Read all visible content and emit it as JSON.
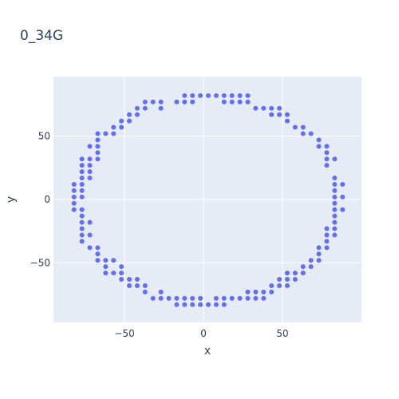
{
  "chart_data": {
    "type": "scatter",
    "title": "0_34G",
    "xlabel": "x",
    "ylabel": "y",
    "xlim": [
      -95,
      100
    ],
    "ylim": [
      -97,
      97
    ],
    "x_ticks": [
      -50,
      0,
      50
    ],
    "y_ticks": [
      -50,
      0,
      50
    ],
    "grid": true,
    "colors": {
      "marker": "#636efa",
      "plot_bg": "#e5ecf6",
      "grid": "#ffffff",
      "text": "#2a3f5f"
    },
    "series": [
      {
        "points": [
          [
            -82,
            12
          ],
          [
            -82,
            7
          ],
          [
            -82,
            2
          ],
          [
            -82,
            -3
          ],
          [
            -82,
            -8
          ],
          [
            -77,
            32
          ],
          [
            -77,
            27
          ],
          [
            -77,
            22
          ],
          [
            -77,
            17
          ],
          [
            -77,
            12
          ],
          [
            -77,
            7
          ],
          [
            -77,
            2
          ],
          [
            -77,
            -8
          ],
          [
            -77,
            -13
          ],
          [
            -77,
            -18
          ],
          [
            -77,
            -23
          ],
          [
            -77,
            -28
          ],
          [
            -77,
            -33
          ],
          [
            -72,
            42
          ],
          [
            -72,
            32
          ],
          [
            -72,
            27
          ],
          [
            -72,
            22
          ],
          [
            -72,
            17
          ],
          [
            -72,
            -18
          ],
          [
            -72,
            -28
          ],
          [
            -72,
            -38
          ],
          [
            -67,
            52
          ],
          [
            -67,
            47
          ],
          [
            -67,
            42
          ],
          [
            -67,
            37
          ],
          [
            -67,
            32
          ],
          [
            -67,
            -38
          ],
          [
            -67,
            -43
          ],
          [
            -67,
            -48
          ],
          [
            -62,
            52
          ],
          [
            -62,
            -48
          ],
          [
            -62,
            -53
          ],
          [
            -62,
            -58
          ],
          [
            -57,
            57
          ],
          [
            -57,
            52
          ],
          [
            -57,
            -48
          ],
          [
            -57,
            -58
          ],
          [
            -52,
            62
          ],
          [
            -52,
            57
          ],
          [
            -52,
            -53
          ],
          [
            -52,
            -58
          ],
          [
            -52,
            -63
          ],
          [
            -47,
            67
          ],
          [
            -47,
            62
          ],
          [
            -47,
            -63
          ],
          [
            -47,
            -68
          ],
          [
            -42,
            72
          ],
          [
            -42,
            67
          ],
          [
            -42,
            -63
          ],
          [
            -42,
            -68
          ],
          [
            -37,
            77
          ],
          [
            -37,
            72
          ],
          [
            -37,
            -68
          ],
          [
            -37,
            -73
          ],
          [
            -32,
            77
          ],
          [
            -32,
            -78
          ],
          [
            -27,
            77
          ],
          [
            -27,
            72
          ],
          [
            -27,
            -73
          ],
          [
            -27,
            -78
          ],
          [
            -22,
            -78
          ],
          [
            -17,
            77
          ],
          [
            -17,
            -78
          ],
          [
            -17,
            -83
          ],
          [
            -12,
            82
          ],
          [
            -12,
            77
          ],
          [
            -12,
            -78
          ],
          [
            -12,
            -83
          ],
          [
            -7,
            82
          ],
          [
            -7,
            77
          ],
          [
            -7,
            -78
          ],
          [
            -7,
            -83
          ],
          [
            -2,
            82
          ],
          [
            -2,
            -78
          ],
          [
            -2,
            -83
          ],
          [
            3,
            82
          ],
          [
            3,
            -83
          ],
          [
            8,
            82
          ],
          [
            8,
            -78
          ],
          [
            8,
            -83
          ],
          [
            13,
            82
          ],
          [
            13,
            77
          ],
          [
            13,
            -78
          ],
          [
            13,
            -83
          ],
          [
            18,
            82
          ],
          [
            18,
            77
          ],
          [
            18,
            -78
          ],
          [
            23,
            82
          ],
          [
            23,
            77
          ],
          [
            23,
            -78
          ],
          [
            28,
            82
          ],
          [
            28,
            77
          ],
          [
            28,
            -73
          ],
          [
            28,
            -78
          ],
          [
            33,
            72
          ],
          [
            33,
            -73
          ],
          [
            33,
            -78
          ],
          [
            38,
            72
          ],
          [
            38,
            -73
          ],
          [
            38,
            -78
          ],
          [
            43,
            72
          ],
          [
            43,
            67
          ],
          [
            43,
            -68
          ],
          [
            43,
            -73
          ],
          [
            48,
            72
          ],
          [
            48,
            67
          ],
          [
            48,
            -63
          ],
          [
            48,
            -68
          ],
          [
            53,
            67
          ],
          [
            53,
            62
          ],
          [
            53,
            -58
          ],
          [
            53,
            -63
          ],
          [
            53,
            -68
          ],
          [
            58,
            57
          ],
          [
            58,
            -58
          ],
          [
            58,
            -63
          ],
          [
            63,
            57
          ],
          [
            63,
            52
          ],
          [
            63,
            -53
          ],
          [
            63,
            -58
          ],
          [
            68,
            52
          ],
          [
            68,
            -48
          ],
          [
            68,
            -53
          ],
          [
            73,
            47
          ],
          [
            73,
            42
          ],
          [
            73,
            -38
          ],
          [
            73,
            -43
          ],
          [
            73,
            -48
          ],
          [
            78,
            42
          ],
          [
            78,
            37
          ],
          [
            78,
            32
          ],
          [
            78,
            27
          ],
          [
            78,
            -23
          ],
          [
            78,
            -28
          ],
          [
            78,
            -33
          ],
          [
            78,
            -38
          ],
          [
            83,
            32
          ],
          [
            83,
            17
          ],
          [
            83,
            12
          ],
          [
            83,
            7
          ],
          [
            83,
            2
          ],
          [
            83,
            -3
          ],
          [
            83,
            -8
          ],
          [
            83,
            -13
          ],
          [
            83,
            -18
          ],
          [
            83,
            -23
          ],
          [
            83,
            -28
          ],
          [
            88,
            12
          ],
          [
            88,
            2
          ],
          [
            88,
            -8
          ]
        ]
      }
    ]
  }
}
